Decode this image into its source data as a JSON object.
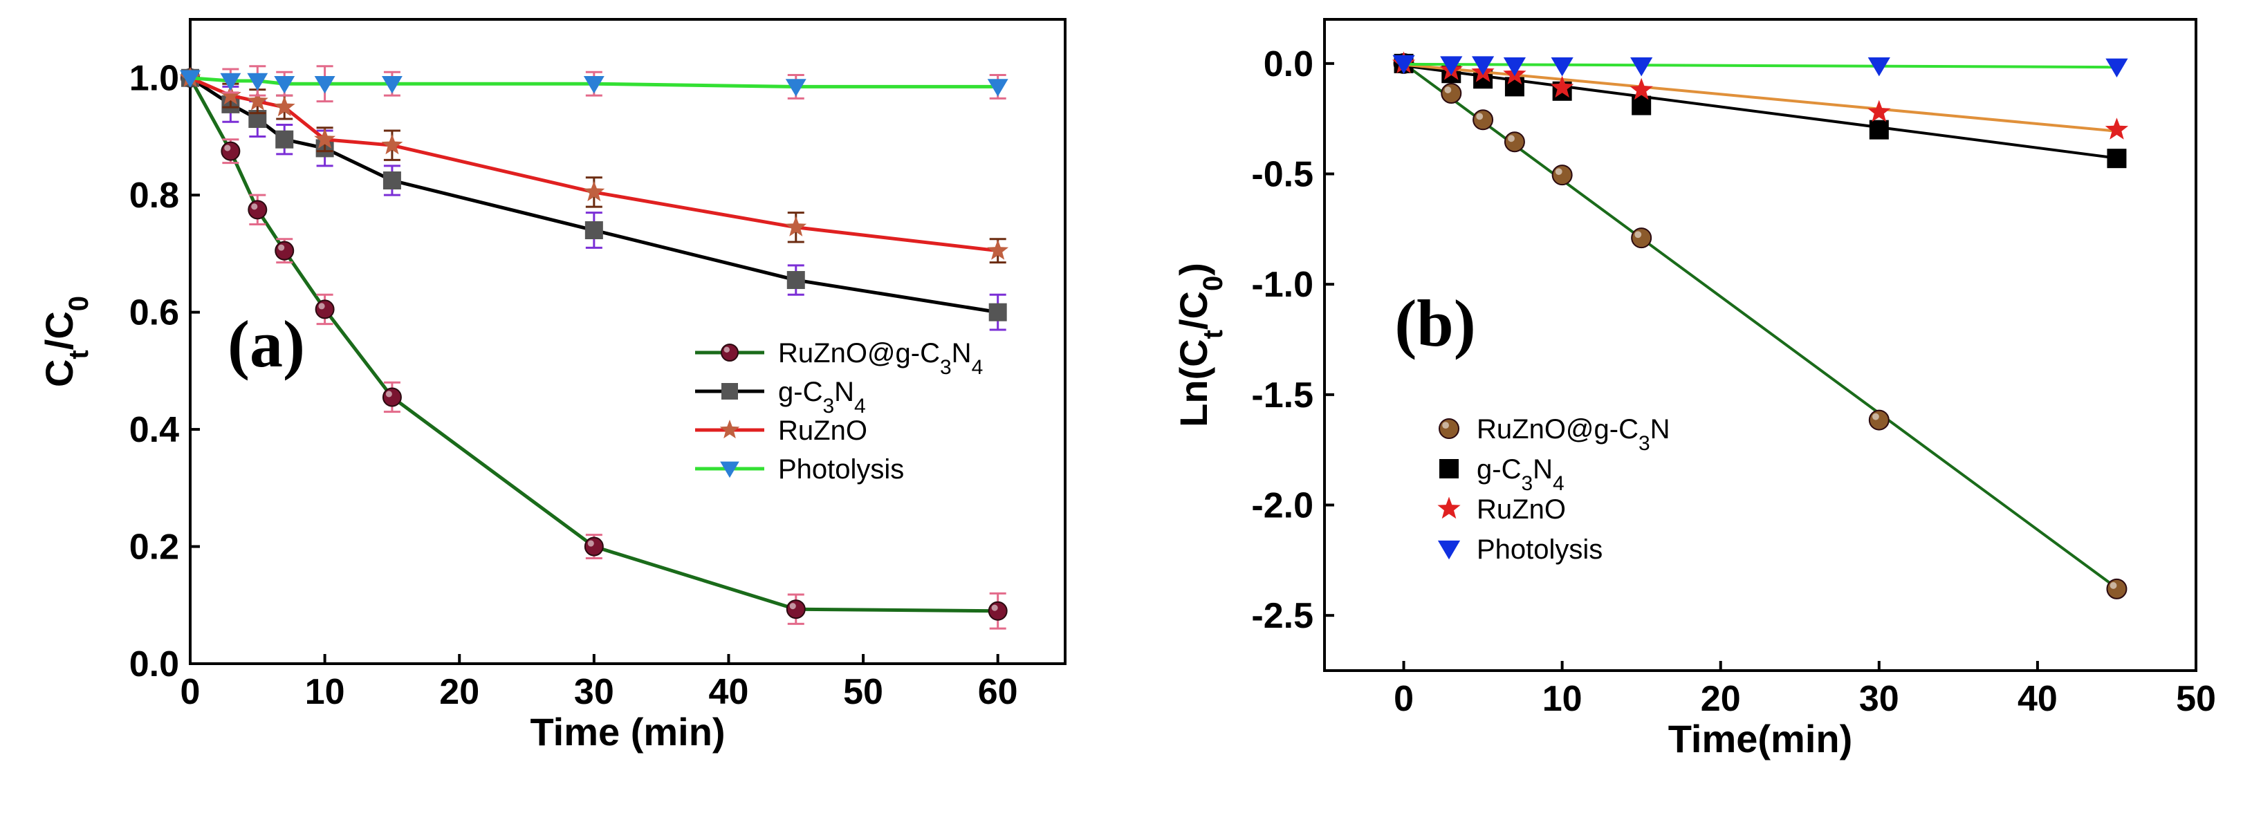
{
  "chart_data": [
    {
      "type": "line",
      "panel_label": "(a)",
      "xlabel": "Time (min)",
      "ylabel_main": "C",
      "ylabel_parts": [
        {
          "text": "C",
          "sub": "t"
        },
        {
          "text": "/C",
          "sub": "0"
        }
      ],
      "xlim": [
        0,
        65
      ],
      "ylim": [
        0,
        1.1
      ],
      "xticks": [
        0,
        10,
        20,
        30,
        40,
        50,
        60
      ],
      "yticks": [
        "0.0",
        "0.2",
        "0.4",
        "0.6",
        "0.8",
        "1.0"
      ],
      "ytick_values": [
        0,
        0.2,
        0.4,
        0.6,
        0.8,
        1.0
      ],
      "x": [
        0,
        3,
        5,
        7,
        10,
        15,
        30,
        45,
        60
      ],
      "series": [
        {
          "name": "RuZnO@g-C3N4",
          "legend_parts": [
            {
              "text": "RuZnO@g-C"
            },
            {
              "text": "3",
              "sub": true
            },
            {
              "text": "N"
            },
            {
              "text": "4",
              "sub": true
            }
          ],
          "line_color": "#1a6b1a",
          "marker_color": "#7a1430",
          "error_color": "#e36a8a",
          "marker": "circle",
          "values": [
            1.0,
            0.875,
            0.775,
            0.705,
            0.605,
            0.455,
            0.2,
            0.093,
            0.09
          ],
          "errors": [
            0,
            0.02,
            0.025,
            0.02,
            0.025,
            0.025,
            0.02,
            0.025,
            0.03
          ]
        },
        {
          "name": "g-C3N4",
          "legend_parts": [
            {
              "text": "g-C"
            },
            {
              "text": "3",
              "sub": true
            },
            {
              "text": "N"
            },
            {
              "text": "4",
              "sub": true
            }
          ],
          "line_color": "#000000",
          "marker_color": "#555555",
          "error_color": "#7b2fd6",
          "marker": "square",
          "values": [
            1.0,
            0.955,
            0.93,
            0.895,
            0.88,
            0.825,
            0.74,
            0.655,
            0.6
          ],
          "errors": [
            0,
            0.03,
            0.03,
            0.025,
            0.03,
            0.025,
            0.03,
            0.025,
            0.03
          ]
        },
        {
          "name": "RuZnO",
          "legend_parts": [
            {
              "text": "RuZnO"
            }
          ],
          "line_color": "#e02020",
          "marker_color": "#c06040",
          "error_color": "#6b2b10",
          "marker": "star",
          "values": [
            1.0,
            0.97,
            0.96,
            0.95,
            0.895,
            0.885,
            0.805,
            0.745,
            0.705
          ],
          "errors": [
            0,
            0.02,
            0.02,
            0.02,
            0.02,
            0.025,
            0.025,
            0.025,
            0.02
          ]
        },
        {
          "name": "Photolysis",
          "legend_parts": [
            {
              "text": "Photolysis"
            }
          ],
          "line_color": "#33e033",
          "marker_color": "#2b7fd6",
          "error_color": "#e36a8a",
          "marker": "triangle-down",
          "values": [
            1.0,
            0.995,
            0.995,
            0.99,
            0.99,
            0.99,
            0.99,
            0.985,
            0.985
          ],
          "errors": [
            0,
            0.02,
            0.025,
            0.02,
            0.03,
            0.02,
            0.02,
            0.02,
            0.02
          ]
        }
      ]
    },
    {
      "type": "scatter",
      "panel_label": "(b)",
      "xlabel": "Time(min)",
      "ylabel_parts": [
        {
          "text": "Ln(C",
          "sub": "t"
        },
        {
          "text": "/C",
          "sub": "0"
        },
        {
          "text": ")"
        }
      ],
      "xlim": [
        -5,
        50
      ],
      "ylim": [
        -2.75,
        0.2
      ],
      "xticks": [
        0,
        10,
        20,
        30,
        40,
        50
      ],
      "yticks": [
        "0.0",
        "-0.5",
        "-1.0",
        "-1.5",
        "-2.0",
        "-2.5"
      ],
      "ytick_values": [
        0,
        -0.5,
        -1.0,
        -1.5,
        -2.0,
        -2.5
      ],
      "x": [
        0,
        3,
        5,
        7,
        10,
        15,
        30,
        45
      ],
      "series": [
        {
          "name": "RuZnO@g-C3N",
          "legend_parts": [
            {
              "text": "RuZnO@g-C"
            },
            {
              "text": "3",
              "sub": true
            },
            {
              "text": "N"
            }
          ],
          "marker_color": "#8b5a2b",
          "fit_color": "#1a6b1a",
          "marker": "circle",
          "values": [
            0,
            -0.135,
            -0.255,
            -0.355,
            -0.505,
            -0.79,
            -1.615,
            -2.38
          ],
          "fit": [
            0,
            -0.0528
          ]
        },
        {
          "name": "g-C3N4",
          "legend_parts": [
            {
              "text": "g-C"
            },
            {
              "text": "3",
              "sub": true
            },
            {
              "text": "N"
            },
            {
              "text": "4",
              "sub": true
            }
          ],
          "marker_color": "#000000",
          "fit_color": "#000000",
          "marker": "square",
          "values": [
            0,
            -0.045,
            -0.07,
            -0.105,
            -0.125,
            -0.19,
            -0.3,
            -0.43
          ],
          "fit": [
            -0.01,
            -0.0093
          ]
        },
        {
          "name": "RuZnO",
          "legend_parts": [
            {
              "text": "RuZnO"
            }
          ],
          "marker_color": "#e02020",
          "fit_color": "#e0903a",
          "marker": "star",
          "values": [
            0,
            -0.03,
            -0.04,
            -0.05,
            -0.11,
            -0.12,
            -0.22,
            -0.3
          ],
          "fit": [
            -0.005,
            -0.0067
          ]
        },
        {
          "name": "Photolysis",
          "legend_parts": [
            {
              "text": "Photolysis"
            }
          ],
          "marker_color": "#1030e0",
          "fit_color": "#33e033",
          "marker": "triangle-down",
          "values": [
            0,
            -0.005,
            -0.005,
            -0.01,
            -0.01,
            -0.01,
            -0.01,
            -0.015
          ],
          "fit": [
            -0.003,
            -0.0003
          ]
        }
      ]
    }
  ]
}
